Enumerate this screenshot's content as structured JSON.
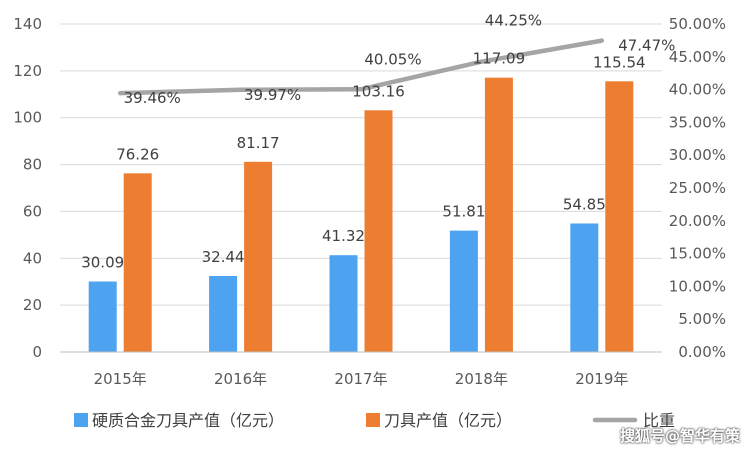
{
  "chart_data": {
    "type": "bar",
    "categories": [
      "2015年",
      "2016年",
      "2017年",
      "2018年",
      "2019年"
    ],
    "series": [
      {
        "name": "硬质合金刀具产值（亿元）",
        "kind": "bar",
        "axis": "left",
        "color": "#4ea3f1",
        "values": [
          30.09,
          32.44,
          41.32,
          51.81,
          54.85
        ],
        "labels": [
          "30.09",
          "32.44",
          "41.32",
          "51.81",
          "54.85"
        ]
      },
      {
        "name": "刀具产值（亿元）",
        "kind": "bar",
        "axis": "left",
        "color": "#ed7d31",
        "values": [
          76.26,
          81.17,
          103.16,
          117.09,
          115.54
        ],
        "labels": [
          "76.26",
          "81.17",
          "103.16",
          "117.09",
          "115.54"
        ]
      },
      {
        "name": "比重",
        "kind": "line",
        "axis": "right",
        "color": "#a5a5a5",
        "values": [
          39.46,
          39.97,
          40.05,
          44.25,
          47.47
        ],
        "labels": [
          "39.46%",
          "39.97%",
          "40.05%",
          "44.25%",
          "47.47%"
        ]
      }
    ],
    "y_left": {
      "lim": [
        0,
        140
      ],
      "ticks": [
        "0",
        "20",
        "40",
        "60",
        "80",
        "100",
        "120",
        "140"
      ]
    },
    "y_right": {
      "lim": [
        0,
        50
      ],
      "ticks": [
        "0.00%",
        "5.00%",
        "10.00%",
        "15.00%",
        "20.00%",
        "25.00%",
        "30.00%",
        "35.00%",
        "40.00%",
        "45.00%",
        "50.00%"
      ]
    },
    "grid": true,
    "legend": "bottom"
  },
  "watermark": "搜狐号@智华有策"
}
